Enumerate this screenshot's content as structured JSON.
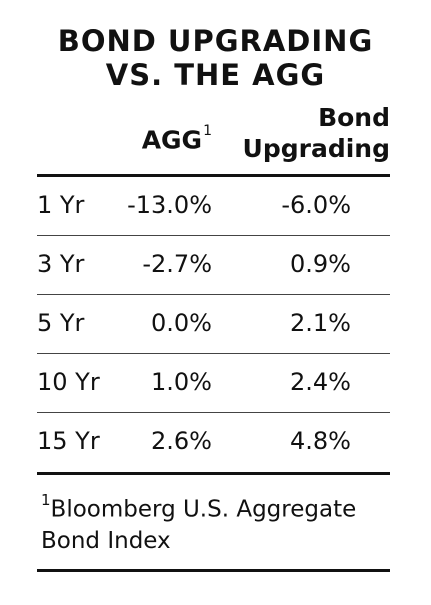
{
  "title": {
    "line1": "BOND UPGRADING",
    "line2": "VS. THE AGG"
  },
  "columns": {
    "agg": "AGG",
    "agg_sup": "1",
    "bond_upgrading_line1": "Bond",
    "bond_upgrading_line2": "Upgrading"
  },
  "rows": [
    {
      "period": "1 Yr",
      "agg": "-13.0%",
      "bond_upgrading": "-6.0%"
    },
    {
      "period": "3 Yr",
      "agg": "-2.7%",
      "bond_upgrading": "0.9%"
    },
    {
      "period": "5 Yr",
      "agg": "0.0%",
      "bond_upgrading": "2.1%"
    },
    {
      "period": "10 Yr",
      "agg": "1.0%",
      "bond_upgrading": "2.4%"
    },
    {
      "period": "15 Yr",
      "agg": "2.6%",
      "bond_upgrading": "4.8%"
    }
  ],
  "footnote": {
    "marker": "1",
    "text": "Bloomberg U.S. Aggregate Bond Index"
  }
}
